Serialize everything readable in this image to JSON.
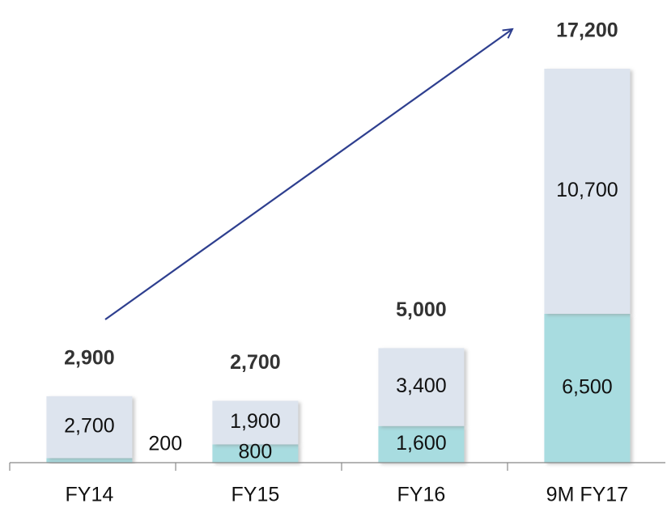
{
  "chart_data": {
    "type": "stacked-bar",
    "categories": [
      "FY14",
      "FY15",
      "FY16",
      "9M FY17"
    ],
    "series": [
      {
        "color": "#a8dce0",
        "values": [
          200,
          800,
          1600,
          6500
        ],
        "value_labels": [
          "200",
          "800",
          "1,600",
          "6,500"
        ]
      },
      {
        "color": "#dde4ee",
        "values": [
          2700,
          1900,
          3400,
          10700
        ],
        "value_labels": [
          "2,700",
          "1,900",
          "3,400",
          "10,700"
        ]
      }
    ],
    "totals": [
      2900,
      2700,
      5000,
      17200
    ],
    "total_labels": [
      "2,900",
      "2,700",
      "5,000",
      "17,200"
    ]
  }
}
